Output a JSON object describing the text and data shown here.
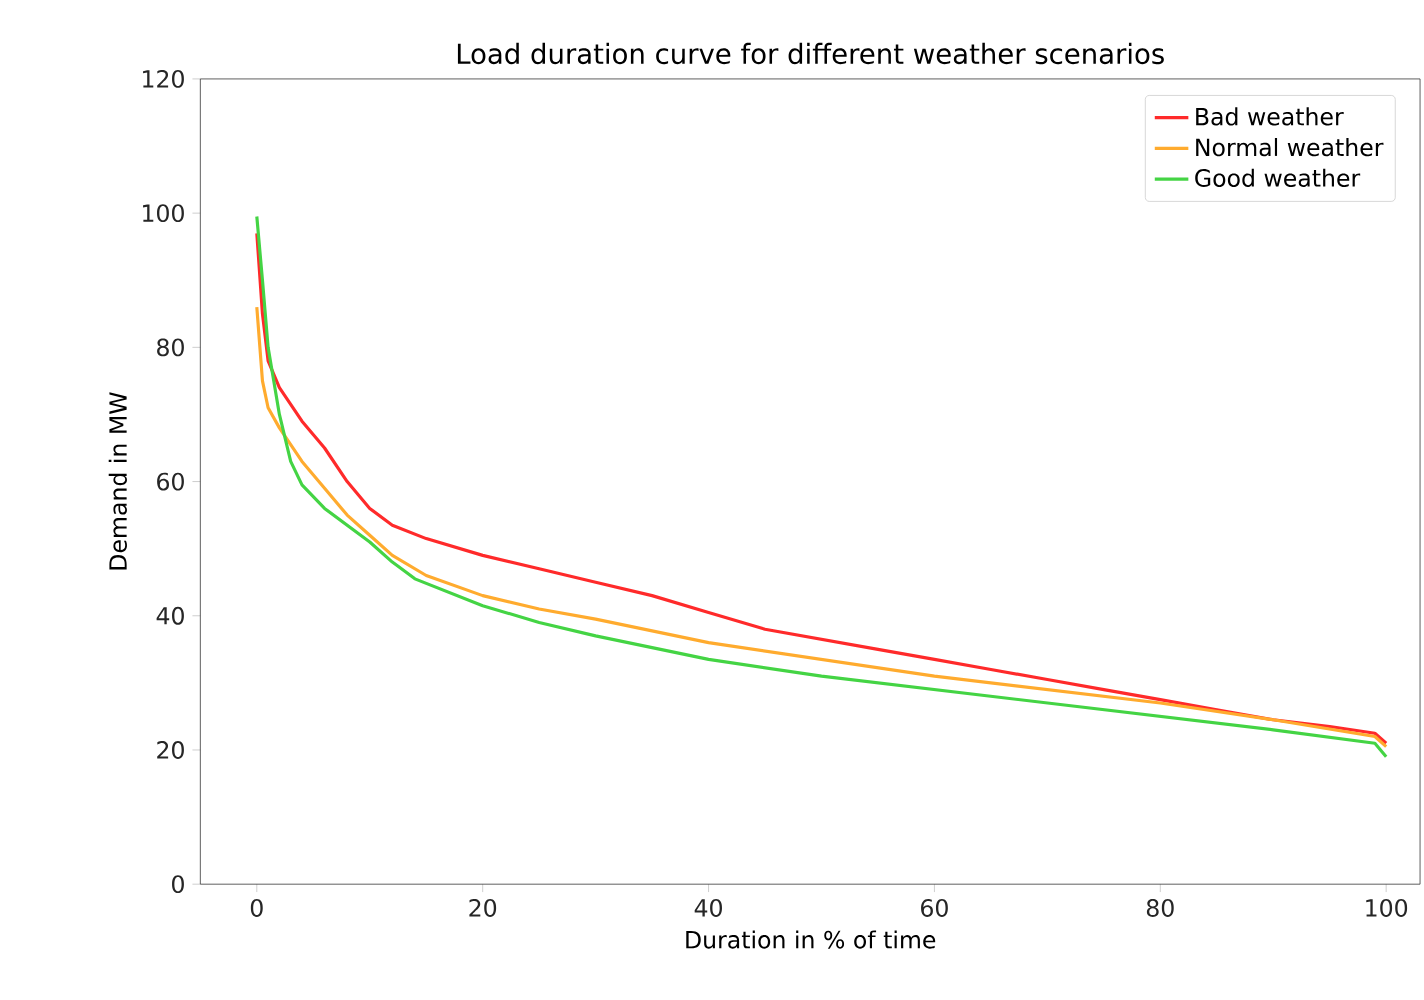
{
  "chart_data": {
    "type": "line",
    "title": "Load duration curve for different weather scenarios",
    "xlabel": "Duration in % of time",
    "ylabel": "Demand in MW",
    "xlim": [
      -5,
      103
    ],
    "xticks": [
      0,
      20,
      40,
      60,
      80,
      100
    ],
    "ylim": [
      0,
      120
    ],
    "yticks": [
      0,
      20,
      40,
      60,
      80,
      100,
      120
    ],
    "grid": false,
    "legend": "top right",
    "marker": "none",
    "line_style": "solid",
    "series": [
      {
        "name": "Bad weather",
        "color": "#ff2a2a",
        "x": [
          0,
          0.5,
          1,
          2,
          4,
          6,
          8,
          10,
          12,
          15,
          20,
          25,
          30,
          35,
          40,
          45,
          50,
          55,
          60,
          65,
          70,
          75,
          80,
          85,
          90,
          95,
          99,
          100
        ],
        "values": [
          97,
          85,
          78,
          74,
          69,
          65,
          60,
          56,
          53.5,
          51.5,
          49,
          47,
          45,
          43,
          40.5,
          38,
          36.5,
          35,
          33.5,
          32,
          30.5,
          29,
          27.5,
          26,
          24.5,
          23.5,
          22.5,
          21
        ]
      },
      {
        "name": "Normal weather",
        "color": "#ffab2e",
        "x": [
          0,
          0.5,
          1,
          2,
          4,
          6,
          8,
          10,
          12,
          15,
          20,
          25,
          30,
          40,
          50,
          60,
          70,
          80,
          90,
          99,
          100
        ],
        "values": [
          86,
          75,
          71,
          68,
          63,
          59,
          55,
          52,
          49,
          46,
          43,
          41,
          39.5,
          36,
          33.5,
          31,
          29,
          27,
          24.5,
          22,
          20.5
        ]
      },
      {
        "name": "Good weather",
        "color": "#44d444",
        "x": [
          0,
          0.5,
          1,
          2,
          3,
          4,
          6,
          8,
          10,
          12,
          14,
          17,
          20,
          25,
          30,
          40,
          50,
          60,
          70,
          80,
          90,
          99,
          100
        ],
        "values": [
          99.5,
          90,
          80,
          70,
          63,
          59.5,
          56,
          53.5,
          51,
          48,
          45.5,
          43.5,
          41.5,
          39,
          37,
          33.5,
          31,
          29,
          27,
          25,
          23,
          21,
          19
        ]
      }
    ]
  }
}
